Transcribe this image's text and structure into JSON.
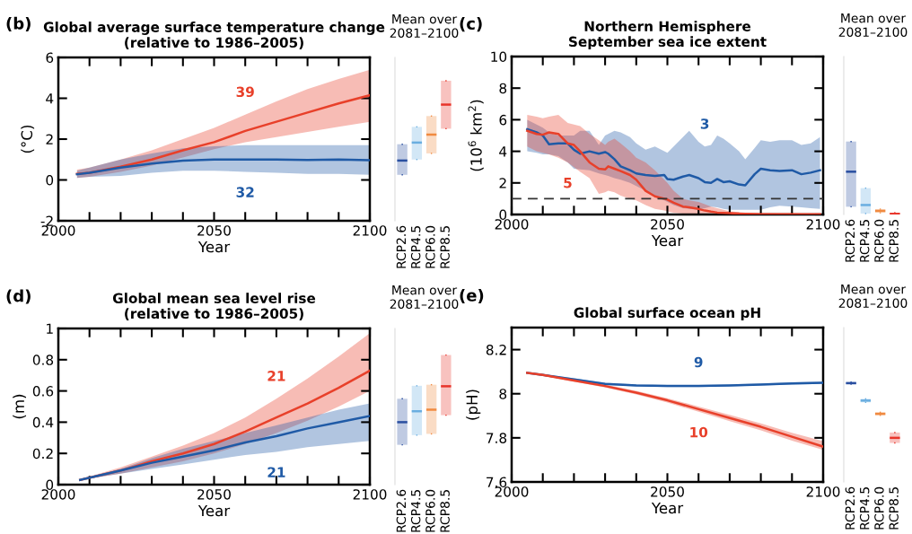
{
  "chart_data": [
    {
      "type": "line",
      "title": "Global average surface temperature change\n(relative to 1986–2005)",
      "xlabel": "Year",
      "ylabel": "(°C)",
      "annotations": [
        "(b)",
        "39",
        "32"
      ],
      "xlim": [
        2000,
        2100
      ],
      "ylim": [
        -2,
        6
      ],
      "xticks": [
        2000,
        {
          "value": 2010,
          "label": null
        },
        {
          "value": 2020,
          "label": null
        },
        {
          "value": 2030,
          "label": null
        },
        {
          "value": 2040,
          "label": null
        },
        2050,
        {
          "value": 2060,
          "label": null
        },
        {
          "value": 2070,
          "label": null
        },
        {
          "value": 2080,
          "label": null
        },
        {
          "value": 2090,
          "label": null
        },
        2100
      ],
      "yticks": [
        -2,
        0,
        2,
        4,
        6
      ],
      "grid": false,
      "legend": false,
      "series": [
        {
          "color": "#e8402a",
          "x": [
            2006,
            2010,
            2020,
            2030,
            2040,
            2050,
            2060,
            2070,
            2080,
            2090,
            2100
          ],
          "values": [
            0.3,
            0.35,
            0.65,
            1.0,
            1.45,
            1.85,
            2.4,
            2.85,
            3.3,
            3.75,
            4.15
          ],
          "lower": [
            0.1,
            0.15,
            0.4,
            0.7,
            1.1,
            1.5,
            1.85,
            2.1,
            2.35,
            2.6,
            2.85
          ],
          "upper": [
            0.5,
            0.6,
            1.0,
            1.45,
            2.0,
            2.55,
            3.2,
            3.85,
            4.45,
            4.95,
            5.4
          ]
        },
        {
          "color": "#1f5aa6",
          "x": [
            2006,
            2010,
            2020,
            2030,
            2040,
            2050,
            2060,
            2070,
            2080,
            2090,
            2100
          ],
          "values": [
            0.28,
            0.35,
            0.6,
            0.8,
            0.95,
            1.0,
            1.0,
            1.0,
            0.98,
            1.0,
            0.97
          ],
          "lower": [
            0.1,
            0.15,
            0.2,
            0.35,
            0.45,
            0.45,
            0.4,
            0.35,
            0.3,
            0.3,
            0.25
          ],
          "upper": [
            0.45,
            0.6,
            1.0,
            1.3,
            1.55,
            1.65,
            1.7,
            1.7,
            1.7,
            1.7,
            1.7
          ]
        }
      ]
    },
    {
      "type": "box",
      "title": "Mean over\n2081–2100",
      "categories": [
        "RCP2.6",
        "RCP4.5",
        "RCP6.0",
        "RCP8.5"
      ],
      "colors": [
        "#2a4fa0",
        "#6aaee0",
        "#f08a40",
        "#e8342a"
      ],
      "tick_labels": "x",
      "ylim": [
        -2,
        6
      ],
      "yticks": [
        -2,
        0,
        2,
        4,
        6
      ],
      "boxes": [
        {
          "low": 0.25,
          "q1": 0.25,
          "median": 0.95,
          "q3": 1.75,
          "high": 1.75
        },
        {
          "low": 1.0,
          "q1": 1.0,
          "median": 1.83,
          "q3": 2.6,
          "high": 2.6
        },
        {
          "low": 1.3,
          "q1": 1.3,
          "median": 2.22,
          "q3": 3.13,
          "high": 3.13
        },
        {
          "low": 2.51,
          "q1": 2.51,
          "median": 3.69,
          "q3": 4.86,
          "high": 4.86
        }
      ]
    },
    {
      "type": "line",
      "title": "Northern Hemisphere\nSeptember sea ice extent",
      "xlabel": "Year",
      "ylabel": "(10$^{6}$ km$^{2}$)",
      "annotations": [
        "(c)",
        "3",
        "5"
      ],
      "xlim": [
        2000,
        2100
      ],
      "ylim": [
        0,
        10
      ],
      "xticks": [
        2000,
        {
          "value": 2010,
          "label": null
        },
        {
          "value": 2020,
          "label": null
        },
        {
          "value": 2030,
          "label": null
        },
        {
          "value": 2040,
          "label": null
        },
        2050,
        {
          "value": 2060,
          "label": null
        },
        {
          "value": 2070,
          "label": null
        },
        {
          "value": 2080,
          "label": null
        },
        {
          "value": 2090,
          "label": null
        },
        2100
      ],
      "yticks": [
        0,
        2,
        4,
        6,
        8,
        10
      ],
      "grid": false,
      "legend": false,
      "ref_lines": [
        {
          "axis": "y",
          "value": 1,
          "label": null,
          "color": "#333333",
          "line_style": "dashed"
        }
      ],
      "series": [
        {
          "color": "#1f5aa6",
          "x": [
            2005,
            2008,
            2010,
            2012,
            2015,
            2018,
            2020,
            2022,
            2025,
            2028,
            2030,
            2031,
            2033,
            2035,
            2038,
            2040,
            2043,
            2046,
            2049,
            2050,
            2052,
            2055,
            2057,
            2060,
            2062,
            2064,
            2066,
            2068,
            2070,
            2073,
            2075,
            2078,
            2080,
            2083,
            2086,
            2090,
            2093,
            2096,
            2099
          ],
          "values": [
            5.4,
            5.2,
            5.0,
            4.45,
            4.5,
            4.5,
            4.1,
            3.85,
            4.0,
            3.85,
            3.95,
            3.85,
            3.5,
            3.05,
            2.8,
            2.6,
            2.5,
            2.45,
            2.5,
            2.25,
            2.2,
            2.4,
            2.5,
            2.3,
            2.05,
            2.0,
            2.25,
            2.05,
            2.1,
            1.9,
            1.85,
            2.55,
            2.9,
            2.8,
            2.75,
            2.8,
            2.55,
            2.65,
            2.8
          ],
          "lower": [
            4.0,
            3.9,
            3.8,
            3.8,
            3.7,
            3.3,
            2.9,
            2.85,
            2.8,
            2.6,
            2.5,
            2.45,
            2.3,
            2.2,
            2.0,
            1.8,
            1.5,
            1.1,
            0.9,
            0.8,
            0.6,
            0.4,
            0.35,
            0.3,
            0.4,
            0.5,
            0.45,
            0.35,
            0.3,
            0.3,
            0.3,
            0.3,
            0.3,
            0.45,
            0.55,
            0.5,
            0.45,
            0.4,
            0.35
          ],
          "upper": [
            6.0,
            5.7,
            5.5,
            5.2,
            5.0,
            5.0,
            5.0,
            5.3,
            5.3,
            4.4,
            5.0,
            5.1,
            5.3,
            5.2,
            4.9,
            4.5,
            4.1,
            4.3,
            4.0,
            3.9,
            4.3,
            4.9,
            5.3,
            4.6,
            4.3,
            4.4,
            5.0,
            4.8,
            4.5,
            4.0,
            3.5,
            4.2,
            4.7,
            4.6,
            4.7,
            4.7,
            4.4,
            4.5,
            4.9
          ]
        },
        {
          "color": "#e8402a",
          "x": [
            2005,
            2008,
            2010,
            2012,
            2015,
            2018,
            2020,
            2022,
            2025,
            2028,
            2030,
            2031,
            2033,
            2035,
            2038,
            2040,
            2043,
            2046,
            2049,
            2050,
            2052,
            2055,
            2057,
            2060,
            2062,
            2064,
            2066,
            2068,
            2070,
            2073,
            2075,
            2078,
            2080,
            2083,
            2086,
            2090,
            2093,
            2096,
            2099
          ],
          "values": [
            5.3,
            5.1,
            5.05,
            5.2,
            5.1,
            4.5,
            4.4,
            4.0,
            3.3,
            2.9,
            2.85,
            3.05,
            2.9,
            2.75,
            2.5,
            2.2,
            1.5,
            1.15,
            1.0,
            0.95,
            0.75,
            0.5,
            0.45,
            0.35,
            0.25,
            0.18,
            0.12,
            0.1,
            0.08,
            0.05,
            0.04,
            0.03,
            0.02,
            0.02,
            0.02,
            0.02,
            0.02,
            0.02,
            0.02
          ],
          "lower": [
            4.3,
            4.0,
            3.9,
            3.8,
            3.6,
            3.3,
            3.0,
            2.7,
            2.3,
            1.3,
            1.4,
            1.5,
            1.4,
            1.2,
            1.0,
            0.9,
            0.6,
            0.35,
            0.25,
            0.2,
            0.12,
            0.05,
            0,
            0,
            0,
            0,
            0,
            0,
            0,
            0,
            0,
            0,
            0,
            0,
            0,
            0,
            0,
            0,
            0
          ],
          "upper": [
            6.3,
            6.2,
            6.1,
            6.2,
            6.3,
            5.8,
            5.7,
            5.6,
            5.1,
            4.7,
            4.4,
            4.6,
            4.8,
            4.5,
            4.0,
            3.6,
            3.3,
            2.8,
            2.2,
            2.0,
            1.5,
            1.0,
            0.9,
            0.8,
            0.65,
            0.5,
            0.4,
            0.3,
            0.2,
            0.15,
            0.12,
            0.1,
            0.1,
            0.1,
            0.08,
            0.08,
            0.06,
            0.05,
            0.05
          ]
        }
      ]
    },
    {
      "type": "box",
      "title": "Mean over\n2081–2100",
      "categories": [
        "RCP2.6",
        "RCP4.5",
        "RCP6.0",
        "RCP8.5"
      ],
      "colors": [
        "#2a4fa0",
        "#6aaee0",
        "#f08a40",
        "#e8342a"
      ],
      "tick_labels": "x",
      "ylim": [
        0,
        10
      ],
      "yticks": [
        0,
        2,
        4,
        6,
        8,
        10
      ],
      "boxes": [
        {
          "low": 0.49,
          "q1": 0.49,
          "median": 2.71,
          "q3": 4.62,
          "high": 4.62
        },
        {
          "low": 0.06,
          "q1": 0.06,
          "median": 0.6,
          "q3": 1.67,
          "high": 1.67
        },
        {
          "low": 0.11,
          "q1": 0.11,
          "median": 0.23,
          "q3": 0.34,
          "high": 0.34
        },
        {
          "low": 0,
          "q1": 0,
          "median": 0.04,
          "q3": 0.11,
          "high": 0.11
        }
      ]
    },
    {
      "type": "line",
      "title": "Global mean sea level rise\n(relative to 1986–2005)",
      "xlabel": "Year",
      "ylabel": "(m)",
      "annotations": [
        "(d)",
        "21",
        "21"
      ],
      "xlim": [
        2000,
        2100
      ],
      "ylim": [
        0,
        1
      ],
      "xticks": [
        2000,
        {
          "value": 2010,
          "label": null
        },
        {
          "value": 2020,
          "label": null
        },
        {
          "value": 2030,
          "label": null
        },
        {
          "value": 2040,
          "label": null
        },
        2050,
        {
          "value": 2060,
          "label": null
        },
        {
          "value": 2070,
          "label": null
        },
        {
          "value": 2080,
          "label": null
        },
        {
          "value": 2090,
          "label": null
        },
        2100
      ],
      "yticks": [
        0,
        0.2,
        0.4,
        0.6,
        0.8,
        1
      ],
      "grid": false,
      "legend": false,
      "series": [
        {
          "color": "#e8402a",
          "x": [
            2007,
            2020,
            2030,
            2040,
            2050,
            2060,
            2070,
            2080,
            2090,
            2100
          ],
          "values": [
            0.03,
            0.09,
            0.15,
            0.2,
            0.26,
            0.34,
            0.43,
            0.52,
            0.62,
            0.73
          ],
          "lower": [
            0.03,
            0.07,
            0.11,
            0.15,
            0.2,
            0.26,
            0.33,
            0.41,
            0.5,
            0.6
          ],
          "upper": [
            0.035,
            0.11,
            0.18,
            0.25,
            0.33,
            0.43,
            0.55,
            0.68,
            0.82,
            0.97
          ]
        },
        {
          "color": "#1f5aa6",
          "x": [
            2007,
            2020,
            2030,
            2040,
            2050,
            2060,
            2070,
            2080,
            2090,
            2100
          ],
          "values": [
            0.03,
            0.09,
            0.14,
            0.18,
            0.22,
            0.27,
            0.31,
            0.36,
            0.4,
            0.44
          ],
          "lower": [
            0.03,
            0.07,
            0.1,
            0.13,
            0.16,
            0.19,
            0.21,
            0.24,
            0.26,
            0.28
          ],
          "upper": [
            0.035,
            0.1,
            0.17,
            0.23,
            0.28,
            0.33,
            0.38,
            0.43,
            0.48,
            0.52
          ]
        }
      ]
    },
    {
      "type": "box",
      "title": "Mean over\n2081–2100",
      "categories": [
        "RCP2.6",
        "RCP4.5",
        "RCP6.0",
        "RCP8.5"
      ],
      "colors": [
        "#2a4fa0",
        "#6aaee0",
        "#f08a40",
        "#e8342a"
      ],
      "tick_labels": "x",
      "ylim": [
        0,
        1
      ],
      "yticks": [
        0,
        0.2,
        0.4,
        0.6,
        0.8,
        1
      ],
      "boxes": [
        {
          "low": 0.255,
          "q1": 0.255,
          "median": 0.4,
          "q3": 0.55,
          "high": 0.55
        },
        {
          "low": 0.317,
          "q1": 0.317,
          "median": 0.47,
          "q3": 0.633,
          "high": 0.633
        },
        {
          "low": 0.325,
          "q1": 0.325,
          "median": 0.48,
          "q3": 0.64,
          "high": 0.64
        },
        {
          "low": 0.445,
          "q1": 0.445,
          "median": 0.63,
          "q3": 0.83,
          "high": 0.83
        }
      ]
    },
    {
      "type": "line",
      "title": "Global surface ocean pH",
      "xlabel": "Year",
      "ylabel": "(pH)",
      "annotations": [
        "(e)",
        "9",
        "10"
      ],
      "xlim": [
        2000,
        2100
      ],
      "ylim": [
        7.6,
        8.3
      ],
      "xticks": [
        2000,
        {
          "value": 2010,
          "label": null
        },
        {
          "value": 2020,
          "label": null
        },
        {
          "value": 2030,
          "label": null
        },
        {
          "value": 2040,
          "label": null
        },
        2050,
        {
          "value": 2060,
          "label": null
        },
        {
          "value": 2070,
          "label": null
        },
        {
          "value": 2080,
          "label": null
        },
        {
          "value": 2090,
          "label": null
        },
        2100
      ],
      "yticks": [
        7.6,
        7.8,
        8,
        8.2
      ],
      "grid": false,
      "legend": false,
      "series": [
        {
          "color": "#1f5aa6",
          "x": [
            2005,
            2010,
            2020,
            2030,
            2040,
            2050,
            2060,
            2070,
            2080,
            2090,
            2100
          ],
          "values": [
            8.095,
            8.085,
            8.065,
            8.045,
            8.038,
            8.035,
            8.035,
            8.038,
            8.042,
            8.047,
            8.05
          ],
          "lower": [
            8.092,
            8.081,
            8.06,
            8.04,
            8.033,
            8.03,
            8.03,
            8.033,
            8.037,
            8.042,
            8.045
          ],
          "upper": [
            8.098,
            8.089,
            8.07,
            8.05,
            8.043,
            8.04,
            8.04,
            8.043,
            8.047,
            8.052,
            8.055
          ]
        },
        {
          "color": "#e8402a",
          "x": [
            2005,
            2010,
            2020,
            2030,
            2040,
            2050,
            2060,
            2070,
            2080,
            2090,
            2100
          ],
          "values": [
            8.095,
            8.085,
            8.06,
            8.035,
            8.005,
            7.97,
            7.93,
            7.89,
            7.85,
            7.805,
            7.76
          ],
          "lower": [
            8.092,
            8.081,
            8.055,
            8.028,
            7.997,
            7.96,
            7.918,
            7.876,
            7.834,
            7.787,
            7.745
          ],
          "upper": [
            8.098,
            8.089,
            8.065,
            8.042,
            8.013,
            7.98,
            7.942,
            7.904,
            7.866,
            7.823,
            7.785
          ]
        }
      ]
    },
    {
      "type": "box",
      "title": "Mean over\n2081–2100",
      "categories": [
        "RCP2.6",
        "RCP4.5",
        "RCP6.0",
        "RCP8.5"
      ],
      "colors": [
        "#2a4fa0",
        "#6aaee0",
        "#f08a40",
        "#e8342a"
      ],
      "tick_labels": "x",
      "ylim": [
        7.6,
        8.3
      ],
      "yticks": [
        7.6,
        7.8,
        8,
        8.2
      ],
      "boxes": [
        {
          "low": 8.043,
          "q1": 8.043,
          "median": 8.048,
          "q3": 8.053,
          "high": 8.053
        },
        {
          "low": 7.961,
          "q1": 7.961,
          "median": 7.969,
          "q3": 7.977,
          "high": 7.977
        },
        {
          "low": 7.902,
          "q1": 7.902,
          "median": 7.909,
          "q3": 7.916,
          "high": 7.916
        },
        {
          "low": 7.777,
          "q1": 7.777,
          "median": 7.8,
          "q3": 7.824,
          "high": 7.824
        }
      ]
    }
  ]
}
